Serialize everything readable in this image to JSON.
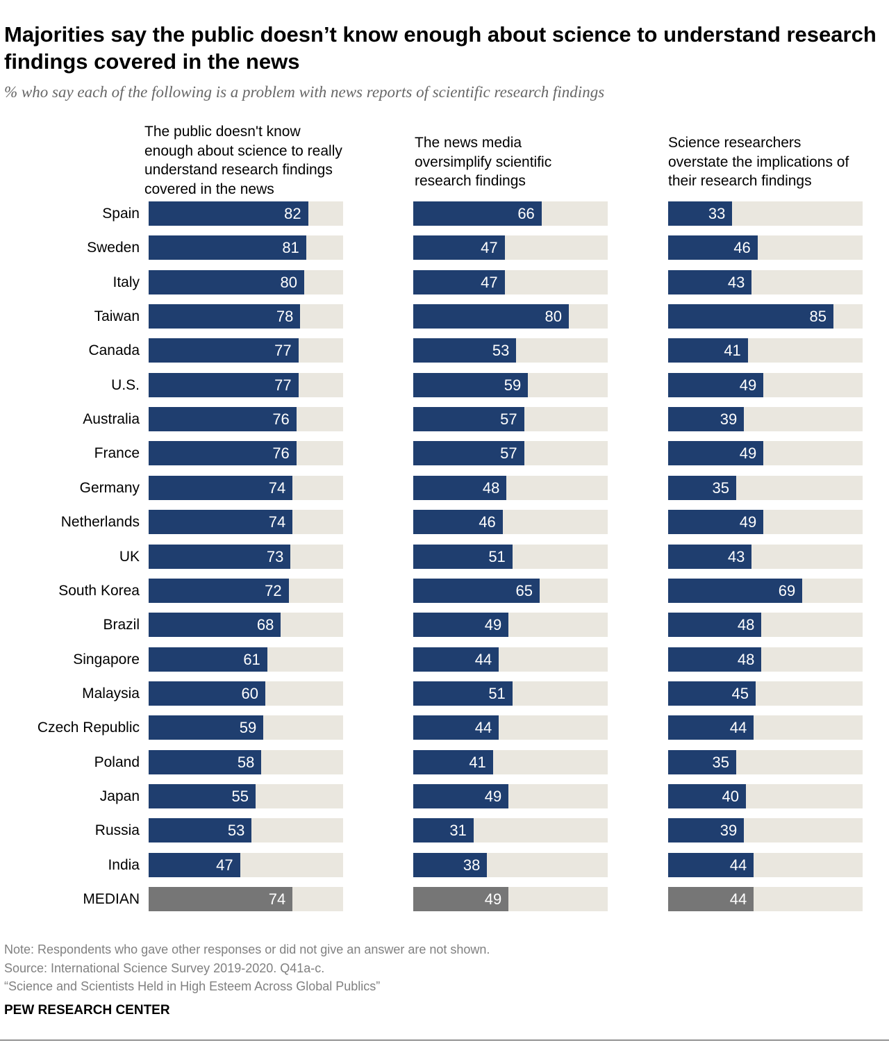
{
  "chart_data": {
    "type": "bar",
    "orientation": "horizontal",
    "title": "Majorities say the public doesn’t know enough about science to understand research findings covered in the news",
    "subtitle": "% who say each of the following is a problem with news reports of scientific research findings",
    "xlim": [
      0,
      100
    ],
    "categories": [
      "Spain",
      "Sweden",
      "Italy",
      "Taiwan",
      "Canada",
      "U.S.",
      "Australia",
      "France",
      "Germany",
      "Netherlands",
      "UK",
      "South Korea",
      "Brazil",
      "Singapore",
      "Malaysia",
      "Czech Republic",
      "Poland",
      "Japan",
      "Russia",
      "India",
      "MEDIAN"
    ],
    "series": [
      {
        "name": "The public doesn't know enough about science to really understand research findings covered in the news",
        "values": [
          82,
          81,
          80,
          78,
          77,
          77,
          76,
          76,
          74,
          74,
          73,
          72,
          68,
          61,
          60,
          59,
          58,
          55,
          53,
          47,
          74
        ]
      },
      {
        "name": "The news media oversimplify scientific research findings",
        "values": [
          66,
          47,
          47,
          80,
          53,
          59,
          57,
          57,
          48,
          46,
          51,
          65,
          49,
          44,
          51,
          44,
          41,
          49,
          31,
          38,
          49
        ]
      },
      {
        "name": "Science researchers overstate the implications of their research findings",
        "values": [
          33,
          46,
          43,
          85,
          41,
          49,
          39,
          49,
          35,
          49,
          43,
          69,
          48,
          48,
          45,
          44,
          35,
          40,
          39,
          44,
          44
        ]
      }
    ],
    "colors": {
      "bar": "#1f3e6f",
      "median": "#767676",
      "track": "#eae7df"
    }
  },
  "notes": [
    "Note: Respondents who gave other responses or did not give an answer are not shown.",
    "Source: International Science Survey 2019-2020. Q41a-c.",
    "“Science and Scientists Held in High Esteem Across Global Publics”"
  ],
  "brand": "PEW RESEARCH CENTER"
}
